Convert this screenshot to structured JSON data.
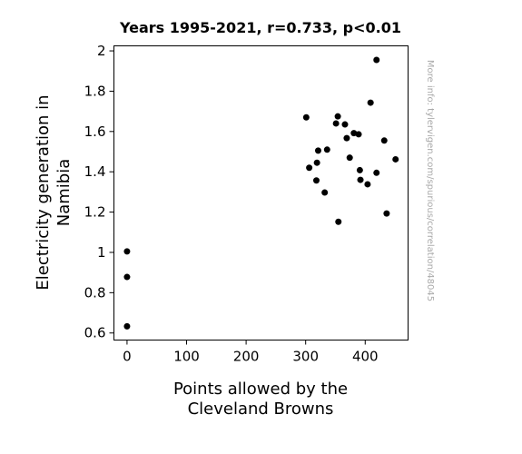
{
  "chart_data": {
    "type": "scatter",
    "title": "Years 1995-2021, r=0.733, p<0.01",
    "xlabel_lines": [
      "Points allowed by the",
      "Cleveland Browns"
    ],
    "ylabel_lines": [
      "Electricity generation in",
      "Namibia"
    ],
    "watermark": "More info: tylervigen.com/spurious/correlation/48045",
    "xlim": [
      -22,
      472
    ],
    "ylim": [
      0.565,
      2.025
    ],
    "x_ticks": [
      0,
      100,
      200,
      300,
      400
    ],
    "x_tick_labels": [
      "0",
      "100",
      "200",
      "300",
      "400"
    ],
    "y_ticks": [
      0.6,
      0.8,
      1.0,
      1.2,
      1.4,
      1.6,
      1.8,
      2.0
    ],
    "y_tick_labels": [
      "0.6",
      "0.8",
      "1",
      "1.2",
      "1.4",
      "1.6",
      "1.8",
      "2"
    ],
    "grid": false,
    "marker_color": "#000000",
    "points": [
      {
        "x": 0,
        "y": 1.005
      },
      {
        "x": 0,
        "y": 0.878
      },
      {
        "x": 0,
        "y": 0.633
      },
      {
        "x": 301,
        "y": 1.67
      },
      {
        "x": 306,
        "y": 1.42
      },
      {
        "x": 318,
        "y": 1.357
      },
      {
        "x": 319,
        "y": 1.445
      },
      {
        "x": 321,
        "y": 1.505
      },
      {
        "x": 332,
        "y": 1.297
      },
      {
        "x": 336,
        "y": 1.51
      },
      {
        "x": 351,
        "y": 1.64
      },
      {
        "x": 354,
        "y": 1.675
      },
      {
        "x": 355,
        "y": 1.152
      },
      {
        "x": 366,
        "y": 1.635
      },
      {
        "x": 369,
        "y": 1.567
      },
      {
        "x": 374,
        "y": 1.47
      },
      {
        "x": 381,
        "y": 1.592
      },
      {
        "x": 389,
        "y": 1.586
      },
      {
        "x": 391,
        "y": 1.408
      },
      {
        "x": 392,
        "y": 1.36
      },
      {
        "x": 404,
        "y": 1.338
      },
      {
        "x": 409,
        "y": 1.743
      },
      {
        "x": 419,
        "y": 1.955
      },
      {
        "x": 419,
        "y": 1.395
      },
      {
        "x": 432,
        "y": 1.555
      },
      {
        "x": 436,
        "y": 1.193
      },
      {
        "x": 451,
        "y": 1.462
      }
    ]
  }
}
